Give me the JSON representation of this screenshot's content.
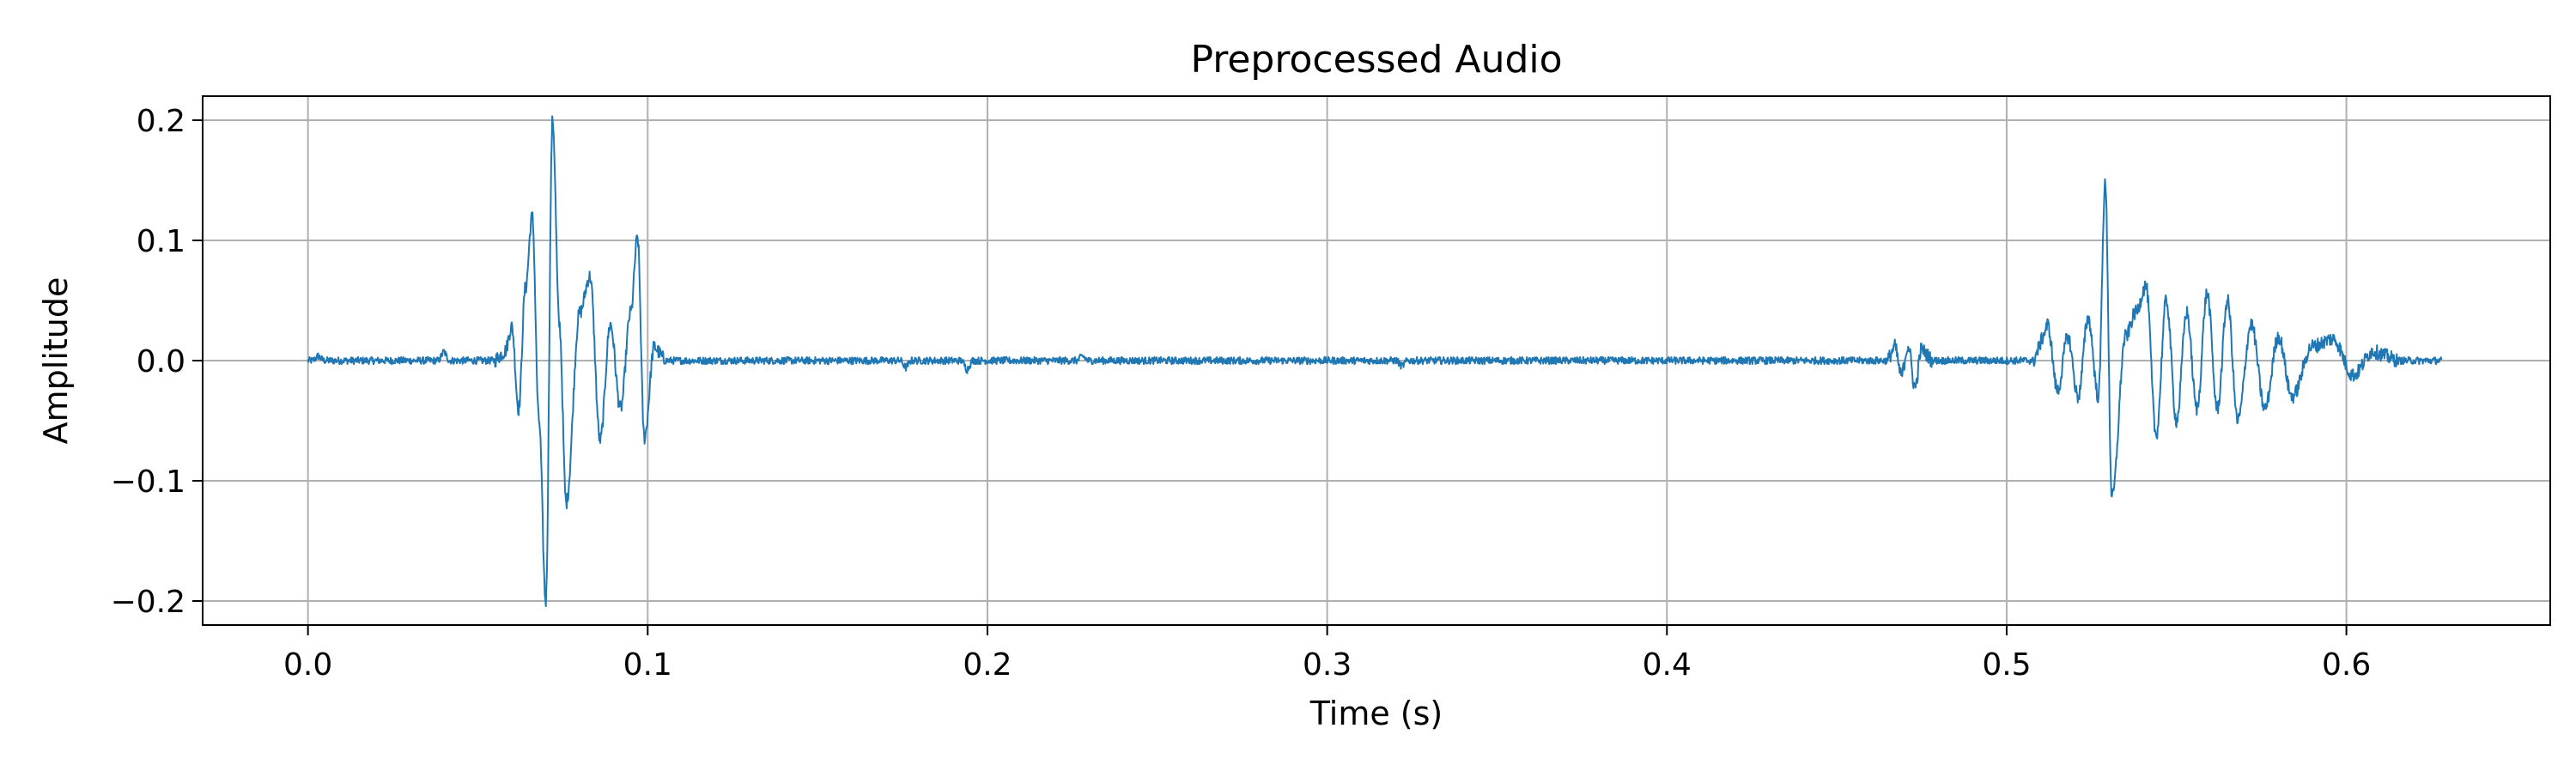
{
  "chart_data": {
    "type": "line",
    "title": "Preprocessed Audio",
    "xlabel": "Time (s)",
    "ylabel": "Amplitude",
    "xlim": [
      -0.031,
      0.66
    ],
    "ylim": [
      -0.22,
      0.22
    ],
    "xticks": [
      0.0,
      0.1,
      0.2,
      0.3,
      0.4,
      0.5,
      0.6
    ],
    "xtick_labels": [
      "0.0",
      "0.1",
      "0.2",
      "0.3",
      "0.4",
      "0.5",
      "0.6"
    ],
    "yticks": [
      -0.2,
      -0.1,
      0.0,
      0.1,
      0.2
    ],
    "ytick_labels": [
      "−0.2",
      "−0.1",
      "0.0",
      "0.1",
      "0.2"
    ],
    "grid": true,
    "line_color": "#1f77b4",
    "grid_color": "#b0b0b0",
    "series": [
      {
        "name": "Preprocessed Audio",
        "duration_s": 0.628,
        "events": [
          {
            "start": 0.055,
            "end": 0.105,
            "peaks": [
              [
                0.058,
                0.008
              ],
              [
                0.06,
                0.028
              ],
              [
                0.062,
                -0.04
              ],
              [
                0.064,
                0.06
              ],
              [
                0.066,
                0.12
              ],
              [
                0.068,
                -0.05
              ],
              [
                0.07,
                -0.2
              ],
              [
                0.072,
                0.2
              ],
              [
                0.074,
                0.03
              ],
              [
                0.076,
                -0.118
              ],
              [
                0.08,
                0.04
              ],
              [
                0.083,
                0.07
              ],
              [
                0.086,
                -0.066
              ],
              [
                0.089,
                0.03
              ],
              [
                0.092,
                -0.04
              ],
              [
                0.095,
                0.04
              ],
              [
                0.097,
                0.102
              ],
              [
                0.099,
                -0.064
              ],
              [
                0.102,
                0.012
              ]
            ]
          },
          {
            "start": 0.465,
            "end": 0.478,
            "peaks": [
              [
                0.467,
                0.012
              ],
              [
                0.469,
                -0.012
              ],
              [
                0.471,
                0.012
              ],
              [
                0.473,
                -0.022
              ],
              [
                0.475,
                0.01
              ]
            ]
          },
          {
            "start": 0.508,
            "end": 0.615,
            "peaks": [
              [
                0.512,
                0.03
              ],
              [
                0.515,
                -0.025
              ],
              [
                0.518,
                0.02
              ],
              [
                0.521,
                -0.03
              ],
              [
                0.524,
                0.035
              ],
              [
                0.527,
                -0.03
              ],
              [
                0.529,
                0.146
              ],
              [
                0.531,
                -0.114
              ],
              [
                0.535,
                0.02
              ],
              [
                0.538,
                0.04
              ],
              [
                0.541,
                0.062
              ],
              [
                0.544,
                -0.062
              ],
              [
                0.547,
                0.05
              ],
              [
                0.55,
                -0.05
              ],
              [
                0.553,
                0.04
              ],
              [
                0.556,
                -0.04
              ],
              [
                0.559,
                0.056
              ],
              [
                0.562,
                -0.04
              ],
              [
                0.565,
                0.05
              ],
              [
                0.568,
                -0.05
              ],
              [
                0.572,
                0.03
              ],
              [
                0.576,
                -0.04
              ],
              [
                0.58,
                0.02
              ],
              [
                0.584,
                -0.03
              ],
              [
                0.59,
                0.012
              ],
              [
                0.596,
                0.018
              ],
              [
                0.602,
                -0.012
              ],
              [
                0.608,
                0.008
              ]
            ]
          }
        ],
        "noise_amplitude": 0.003,
        "minor_blips": [
          [
            0.003,
            0.004
          ],
          [
            0.04,
            0.008
          ],
          [
            0.176,
            -0.006
          ],
          [
            0.194,
            -0.008
          ],
          [
            0.228,
            0.004
          ],
          [
            0.322,
            -0.005
          ]
        ]
      }
    ]
  }
}
